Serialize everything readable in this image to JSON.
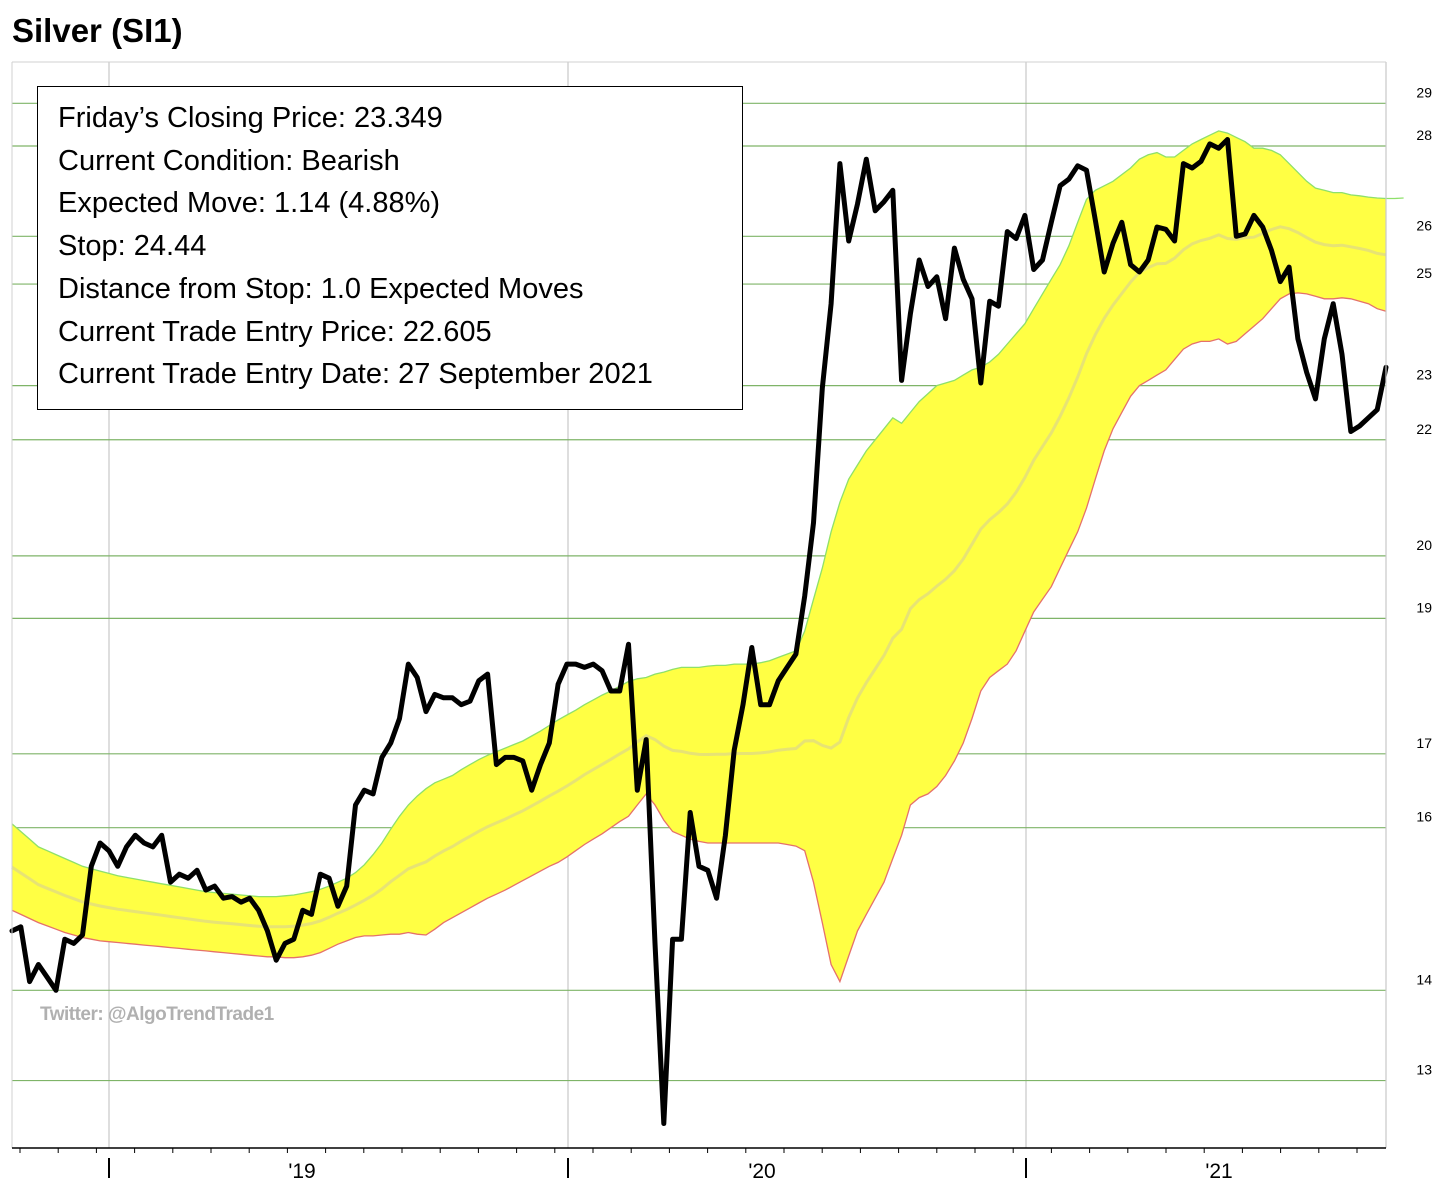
{
  "title": "Silver (SI1)",
  "info_box": [
    "Friday’s Closing Price: 23.349",
    "Current Condition: Bearish",
    "Expected Move: 1.14 (4.88%)",
    "Stop: 24.44",
    "Distance from Stop: 1.0 Expected Moves",
    "Current Trade Entry Price: 22.605",
    "Current Trade Entry Date: 27 September 2021"
  ],
  "watermark": "Twitter: @AlgoTrendTrade1",
  "colors": {
    "price_line": "#000000",
    "band_fill": "#ffff44",
    "band_upper": "#8ee06a",
    "band_lower": "#e5716b",
    "middle_line": "#e4e07a",
    "hgrid": "#7fb468",
    "vgrid": "#c8c8c8"
  },
  "chart_data": {
    "type": "line",
    "y_scale": "log",
    "ylim": [
      12.3,
      30
    ],
    "y_ticks": [
      13,
      14,
      16,
      17,
      19,
      20,
      22,
      23,
      25,
      26,
      28,
      29
    ],
    "x_labels": [
      "",
      "'19",
      "",
      "'20",
      "",
      "'21"
    ],
    "xlabel": "",
    "ylabel": "",
    "grid": true,
    "legend": "none",
    "series": [
      {
        "role": "price",
        "values": [
          14.7,
          14.75,
          14.1,
          14.3,
          14.15,
          14.0,
          14.6,
          14.55,
          14.65,
          15.5,
          15.8,
          15.7,
          15.5,
          15.75,
          15.9,
          15.8,
          15.75,
          15.9,
          15.3,
          15.4,
          15.35,
          15.45,
          15.2,
          15.25,
          15.1,
          15.12,
          15.05,
          15.1,
          14.95,
          14.7,
          14.35,
          14.55,
          14.6,
          14.95,
          14.9,
          15.4,
          15.35,
          15.0,
          15.25,
          16.3,
          16.5,
          16.45,
          16.95,
          17.15,
          17.5,
          18.3,
          18.1,
          17.6,
          17.85,
          17.8,
          17.8,
          17.7,
          17.75,
          18.05,
          18.15,
          16.85,
          16.95,
          16.95,
          16.9,
          16.5,
          16.85,
          17.15,
          18.0,
          18.3,
          18.3,
          18.25,
          18.3,
          18.2,
          17.9,
          17.9,
          18.6,
          16.5,
          17.2,
          14.55,
          12.55,
          14.6,
          14.6,
          16.2,
          15.5,
          15.45,
          15.1,
          15.9,
          17.05,
          17.7,
          18.55,
          17.7,
          17.7,
          18.05,
          18.25,
          18.45,
          19.35,
          20.55,
          22.95,
          24.6,
          27.6,
          25.9,
          26.7,
          27.7,
          26.55,
          26.75,
          27.0,
          23.1,
          24.4,
          25.5,
          24.95,
          25.15,
          24.3,
          25.75,
          25.1,
          24.7,
          23.05,
          24.65,
          24.55,
          26.1,
          25.95,
          26.45,
          25.3,
          25.5,
          26.3,
          27.1,
          27.25,
          27.55,
          27.45,
          26.35,
          25.25,
          25.85,
          26.3,
          25.4,
          25.25,
          25.5,
          26.2,
          26.15,
          25.9,
          27.6,
          27.5,
          27.65,
          28.05,
          27.95,
          28.15,
          26.0,
          26.05,
          26.45,
          26.2,
          25.7,
          25.05,
          25.35,
          23.9,
          23.25,
          22.75,
          23.9,
          24.6,
          23.6,
          22.15,
          22.25,
          22.4,
          22.55,
          23.349
        ]
      },
      {
        "role": "band-upper",
        "values": [
          16.05,
          15.95,
          15.85,
          15.75,
          15.7,
          15.65,
          15.6,
          15.55,
          15.5,
          15.47,
          15.44,
          15.41,
          15.38,
          15.36,
          15.34,
          15.32,
          15.3,
          15.28,
          15.26,
          15.24,
          15.22,
          15.2,
          15.18,
          15.17,
          15.16,
          15.15,
          15.14,
          15.13,
          15.12,
          15.12,
          15.12,
          15.13,
          15.14,
          15.16,
          15.18,
          15.21,
          15.25,
          15.3,
          15.35,
          15.42,
          15.52,
          15.65,
          15.8,
          15.98,
          16.15,
          16.3,
          16.42,
          16.52,
          16.6,
          16.65,
          16.7,
          16.78,
          16.85,
          16.92,
          16.98,
          17.03,
          17.08,
          17.13,
          17.18,
          17.25,
          17.32,
          17.4,
          17.48,
          17.55,
          17.62,
          17.7,
          17.77,
          17.84,
          17.9,
          17.97,
          18.04,
          18.08,
          18.1,
          18.15,
          18.18,
          18.22,
          18.25,
          18.25,
          18.25,
          18.27,
          18.28,
          18.28,
          18.3,
          18.3,
          18.3,
          18.32,
          18.35,
          18.4,
          18.45,
          18.5,
          18.8,
          19.3,
          19.8,
          20.4,
          20.9,
          21.3,
          21.55,
          21.8,
          22.0,
          22.2,
          22.4,
          22.3,
          22.5,
          22.7,
          22.85,
          23.0,
          23.05,
          23.1,
          23.2,
          23.3,
          23.35,
          23.45,
          23.6,
          23.8,
          24.0,
          24.2,
          24.5,
          24.8,
          25.1,
          25.4,
          25.8,
          26.3,
          26.8,
          27.0,
          27.1,
          27.2,
          27.35,
          27.5,
          27.7,
          27.8,
          27.85,
          27.75,
          27.75,
          27.9,
          28.05,
          28.15,
          28.25,
          28.35,
          28.3,
          28.2,
          28.1,
          27.95,
          27.95,
          27.9,
          27.8,
          27.6,
          27.4,
          27.2,
          27.05,
          27.0,
          26.95,
          26.95,
          26.9,
          26.88,
          26.85,
          26.83,
          26.82,
          26.82,
          26.83
        ]
      },
      {
        "role": "band-lower",
        "values": [
          14.95,
          14.9,
          14.85,
          14.8,
          14.76,
          14.72,
          14.68,
          14.65,
          14.62,
          14.6,
          14.58,
          14.57,
          14.56,
          14.55,
          14.54,
          14.53,
          14.52,
          14.51,
          14.5,
          14.49,
          14.48,
          14.47,
          14.46,
          14.45,
          14.44,
          14.43,
          14.42,
          14.41,
          14.4,
          14.39,
          14.39,
          14.38,
          14.38,
          14.39,
          14.41,
          14.44,
          14.49,
          14.54,
          14.58,
          14.62,
          14.64,
          14.64,
          14.65,
          14.66,
          14.66,
          14.68,
          14.66,
          14.65,
          14.72,
          14.8,
          14.86,
          14.92,
          14.98,
          15.04,
          15.1,
          15.15,
          15.2,
          15.26,
          15.32,
          15.38,
          15.44,
          15.5,
          15.55,
          15.62,
          15.7,
          15.78,
          15.85,
          15.92,
          16.0,
          16.08,
          16.15,
          16.3,
          16.45,
          16.3,
          16.1,
          15.95,
          15.9,
          15.85,
          15.82,
          15.8,
          15.8,
          15.8,
          15.8,
          15.8,
          15.8,
          15.8,
          15.8,
          15.8,
          15.78,
          15.76,
          15.7,
          15.3,
          14.8,
          14.3,
          14.1,
          14.4,
          14.7,
          14.9,
          15.1,
          15.3,
          15.6,
          15.9,
          16.3,
          16.4,
          16.45,
          16.55,
          16.7,
          16.9,
          17.15,
          17.5,
          17.9,
          18.1,
          18.2,
          18.3,
          18.5,
          18.8,
          19.1,
          19.3,
          19.5,
          19.8,
          20.1,
          20.4,
          20.8,
          21.3,
          21.8,
          22.2,
          22.5,
          22.8,
          23.0,
          23.1,
          23.2,
          23.3,
          23.5,
          23.7,
          23.8,
          23.85,
          23.85,
          23.9,
          23.8,
          23.85,
          24.0,
          24.15,
          24.3,
          24.5,
          24.7,
          24.8,
          24.82,
          24.8,
          24.75,
          24.7,
          24.7,
          24.72,
          24.7,
          24.65,
          24.6,
          24.5,
          24.45
        ]
      }
    ]
  }
}
